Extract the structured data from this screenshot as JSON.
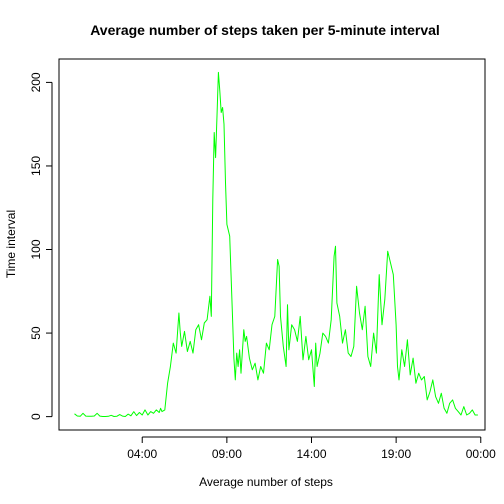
{
  "chart_data": {
    "type": "line",
    "title": "Average number of steps taken per 5-minute interval",
    "xlabel": "Average number of steps",
    "ylabel": "Time interval",
    "x_ticks": [
      {
        "label": "04:00",
        "hours": 4
      },
      {
        "label": "09:00",
        "hours": 9
      },
      {
        "label": "14:00",
        "hours": 14
      },
      {
        "label": "19:00",
        "hours": 19
      },
      {
        "label": "00:00",
        "hours": 24
      }
    ],
    "y_ticks": [
      0,
      50,
      100,
      150,
      200
    ],
    "xlim": [
      "-00:55",
      "24:15"
    ],
    "ylim": [
      -8,
      214
    ],
    "grid": false,
    "line_color": "#00ff00",
    "series": [
      {
        "points": [
          [
            "00:00",
            1.7
          ],
          [
            "00:10",
            0.4
          ],
          [
            "00:20",
            0.2
          ],
          [
            "00:30",
            2
          ],
          [
            "00:40",
            0.3
          ],
          [
            "00:50",
            0.2
          ],
          [
            "01:00",
            0.2
          ],
          [
            "01:10",
            0.4
          ],
          [
            "01:20",
            2
          ],
          [
            "01:30",
            0.3
          ],
          [
            "01:40",
            0.1
          ],
          [
            "01:50",
            0.1
          ],
          [
            "02:00",
            0.2
          ],
          [
            "02:10",
            0.8
          ],
          [
            "02:20",
            0.1
          ],
          [
            "02:30",
            0.2
          ],
          [
            "02:40",
            1.2
          ],
          [
            "02:50",
            0.3
          ],
          [
            "03:00",
            0.1
          ],
          [
            "03:10",
            1.5
          ],
          [
            "03:20",
            0.5
          ],
          [
            "03:30",
            3
          ],
          [
            "03:40",
            0.6
          ],
          [
            "03:50",
            2.5
          ],
          [
            "04:00",
            1
          ],
          [
            "04:10",
            4
          ],
          [
            "04:20",
            1
          ],
          [
            "04:30",
            3
          ],
          [
            "04:40",
            2
          ],
          [
            "04:50",
            4
          ],
          [
            "05:00",
            2.5
          ],
          [
            "05:05",
            5
          ],
          [
            "05:10",
            3
          ],
          [
            "05:20",
            4
          ],
          [
            "05:30",
            20
          ],
          [
            "05:40",
            30
          ],
          [
            "05:50",
            44
          ],
          [
            "06:00",
            38
          ],
          [
            "06:10",
            62
          ],
          [
            "06:15",
            50
          ],
          [
            "06:20",
            42
          ],
          [
            "06:30",
            51
          ],
          [
            "06:40",
            39
          ],
          [
            "06:50",
            45
          ],
          [
            "07:00",
            38
          ],
          [
            "07:10",
            52
          ],
          [
            "07:20",
            55
          ],
          [
            "07:30",
            46
          ],
          [
            "07:40",
            56
          ],
          [
            "07:50",
            58
          ],
          [
            "08:00",
            72
          ],
          [
            "08:05",
            60
          ],
          [
            "08:10",
            130
          ],
          [
            "08:15",
            170
          ],
          [
            "08:20",
            155
          ],
          [
            "08:25",
            180
          ],
          [
            "08:30",
            206
          ],
          [
            "08:35",
            195
          ],
          [
            "08:40",
            182
          ],
          [
            "08:45",
            185
          ],
          [
            "08:50",
            175
          ],
          [
            "08:55",
            140
          ],
          [
            "09:00",
            115
          ],
          [
            "09:10",
            108
          ],
          [
            "09:20",
            60
          ],
          [
            "09:25",
            35
          ],
          [
            "09:30",
            22
          ],
          [
            "09:35",
            38
          ],
          [
            "09:40",
            30
          ],
          [
            "09:45",
            40
          ],
          [
            "09:50",
            26
          ],
          [
            "10:00",
            52
          ],
          [
            "10:05",
            45
          ],
          [
            "10:10",
            48
          ],
          [
            "10:20",
            35
          ],
          [
            "10:30",
            28
          ],
          [
            "10:40",
            32
          ],
          [
            "10:50",
            22
          ],
          [
            "11:00",
            30
          ],
          [
            "11:10",
            26
          ],
          [
            "11:20",
            44
          ],
          [
            "11:30",
            40
          ],
          [
            "11:40",
            55
          ],
          [
            "11:50",
            60
          ],
          [
            "12:00",
            94
          ],
          [
            "12:05",
            90
          ],
          [
            "12:10",
            60
          ],
          [
            "12:20",
            42
          ],
          [
            "12:30",
            30
          ],
          [
            "12:35",
            67
          ],
          [
            "12:40",
            40
          ],
          [
            "12:50",
            55
          ],
          [
            "13:00",
            52
          ],
          [
            "13:10",
            45
          ],
          [
            "13:20",
            60
          ],
          [
            "13:30",
            34
          ],
          [
            "13:40",
            48
          ],
          [
            "13:50",
            34
          ],
          [
            "14:00",
            40
          ],
          [
            "14:10",
            18
          ],
          [
            "14:15",
            44
          ],
          [
            "14:20",
            30
          ],
          [
            "14:30",
            38
          ],
          [
            "14:40",
            50
          ],
          [
            "14:50",
            48
          ],
          [
            "15:00",
            44
          ],
          [
            "15:10",
            58
          ],
          [
            "15:20",
            96
          ],
          [
            "15:25",
            102
          ],
          [
            "15:30",
            68
          ],
          [
            "15:40",
            60
          ],
          [
            "15:50",
            44
          ],
          [
            "16:00",
            52
          ],
          [
            "16:10",
            38
          ],
          [
            "16:20",
            36
          ],
          [
            "16:30",
            42
          ],
          [
            "16:40",
            78
          ],
          [
            "16:50",
            62
          ],
          [
            "17:00",
            52
          ],
          [
            "17:10",
            66
          ],
          [
            "17:20",
            36
          ],
          [
            "17:30",
            30
          ],
          [
            "17:40",
            50
          ],
          [
            "17:50",
            38
          ],
          [
            "18:00",
            85
          ],
          [
            "18:10",
            55
          ],
          [
            "18:20",
            70
          ],
          [
            "18:30",
            99
          ],
          [
            "18:40",
            92
          ],
          [
            "18:50",
            85
          ],
          [
            "19:00",
            55
          ],
          [
            "19:05",
            30
          ],
          [
            "19:10",
            22
          ],
          [
            "19:20",
            40
          ],
          [
            "19:30",
            30
          ],
          [
            "19:40",
            46
          ],
          [
            "19:50",
            25
          ],
          [
            "20:00",
            35
          ],
          [
            "20:10",
            20
          ],
          [
            "20:20",
            26
          ],
          [
            "20:30",
            22
          ],
          [
            "20:40",
            24
          ],
          [
            "20:50",
            10
          ],
          [
            "21:00",
            15
          ],
          [
            "21:10",
            22
          ],
          [
            "21:20",
            12
          ],
          [
            "21:30",
            8
          ],
          [
            "21:40",
            14
          ],
          [
            "21:50",
            5
          ],
          [
            "22:00",
            2
          ],
          [
            "22:10",
            8
          ],
          [
            "22:20",
            10
          ],
          [
            "22:30",
            5
          ],
          [
            "22:40",
            3
          ],
          [
            "22:50",
            1
          ],
          [
            "23:00",
            6
          ],
          [
            "23:10",
            1
          ],
          [
            "23:20",
            2
          ],
          [
            "23:30",
            4
          ],
          [
            "23:40",
            1
          ],
          [
            "23:50",
            1
          ]
        ]
      }
    ]
  }
}
